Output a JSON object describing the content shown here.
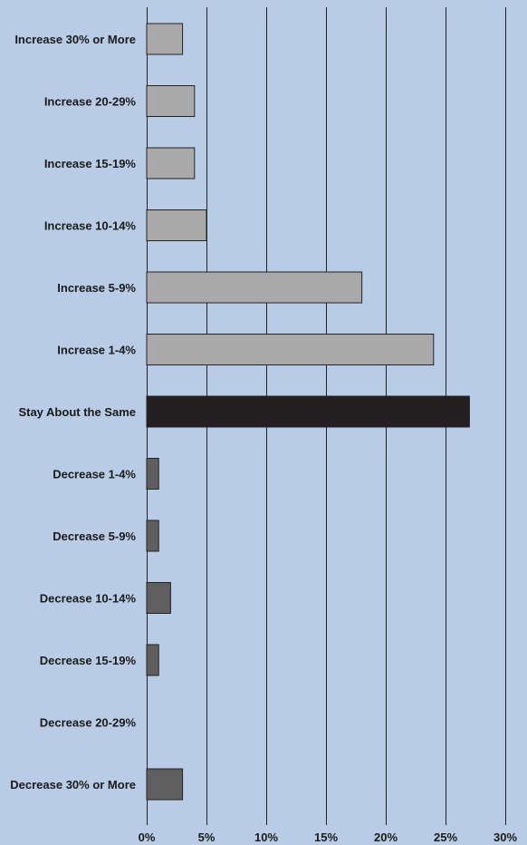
{
  "chart_data": {
    "type": "bar",
    "orientation": "horizontal",
    "categories": [
      "Increase 30% or More",
      "Increase 20-29%",
      "Increase 15-19%",
      "Increase 10-14%",
      "Increase 5-9%",
      "Increase 1-4%",
      "Stay About the Same",
      "Decrease 1-4%",
      "Decrease 5-9%",
      "Decrease 10-14%",
      "Decrease 15-19%",
      "Decrease 20-29%",
      "Decrease 30% or More"
    ],
    "values": [
      3,
      4,
      4,
      5,
      18,
      24,
      27,
      1,
      1,
      2,
      1,
      0,
      3
    ],
    "groups": [
      "increase",
      "increase",
      "increase",
      "increase",
      "increase",
      "increase",
      "same",
      "decrease",
      "decrease",
      "decrease",
      "decrease",
      "decrease",
      "decrease"
    ],
    "xlim": [
      0,
      30
    ],
    "x_ticks": [
      0,
      5,
      10,
      15,
      20,
      25,
      30
    ],
    "x_tick_labels": [
      "0%",
      "5%",
      "10%",
      "15%",
      "20%",
      "25%",
      "30%"
    ],
    "grid": true,
    "legend": "none",
    "title": "",
    "xlabel": "",
    "ylabel": ""
  },
  "colors": {
    "background": "#b8cce6",
    "increase": "#a9a9a9",
    "same": "#231f20",
    "decrease": "#5f5f5f",
    "grid": "#222222"
  }
}
